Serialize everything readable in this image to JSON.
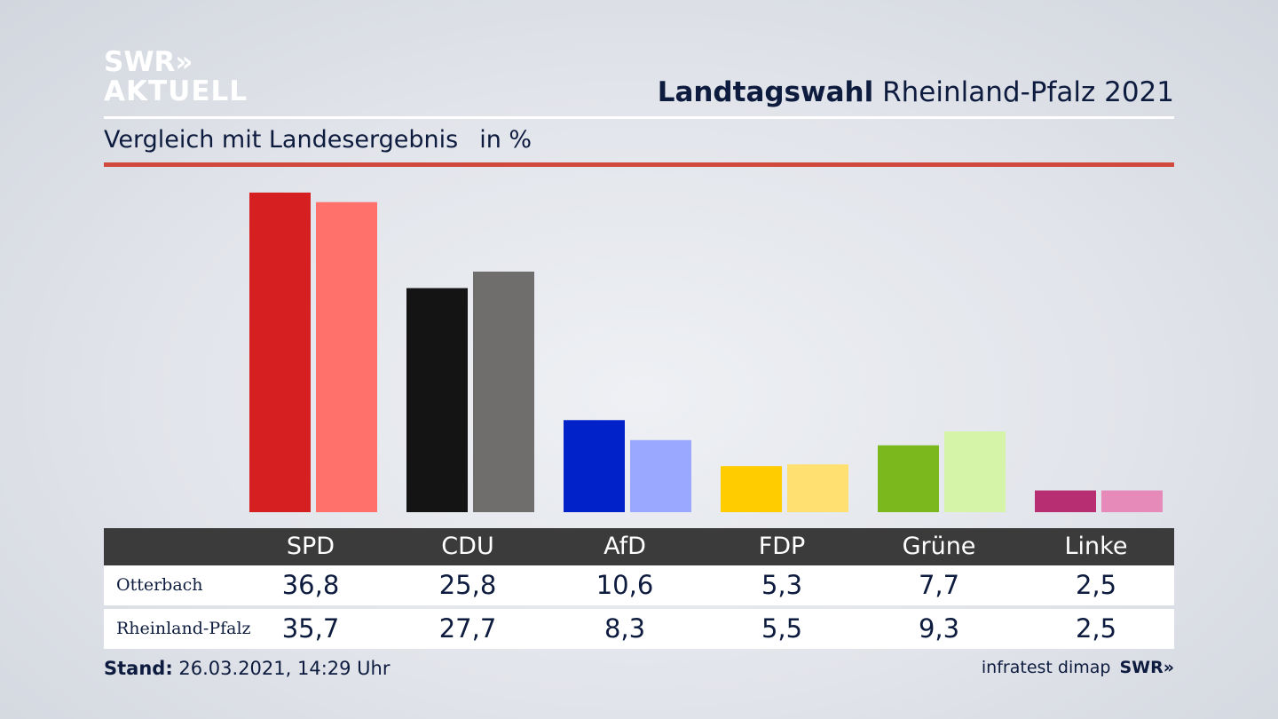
{
  "logo": {
    "line1": "SWR»",
    "line2": "AKTUELL"
  },
  "header": {
    "title_bold": "Landtagswahl",
    "title_rest": " Rheinland-Pfalz 2021",
    "subtitle": "Vergleich mit Landesergebnis",
    "unit": "in %"
  },
  "colors": {
    "accent_red": "#d1483c",
    "table_header": "#3b3b3b"
  },
  "chart_data": {
    "type": "bar",
    "categories": [
      "SPD",
      "CDU",
      "AfD",
      "FDP",
      "Grüne",
      "Linke"
    ],
    "series": [
      {
        "name": "Otterbach",
        "values": [
          36.8,
          25.8,
          10.6,
          5.3,
          7.7,
          2.5
        ],
        "colors": [
          "#d51f20",
          "#141414",
          "#0022c8",
          "#ffcc00",
          "#7ab81e",
          "#b82e72"
        ]
      },
      {
        "name": "Rheinland-Pfalz",
        "values": [
          35.7,
          27.7,
          8.3,
          5.5,
          9.3,
          2.5
        ],
        "colors": [
          "#ff716a",
          "#6f6e6c",
          "#9aa8ff",
          "#ffe070",
          "#d5f4a8",
          "#e58ab9"
        ]
      }
    ],
    "value_labels": [
      [
        "36,8",
        "25,8",
        "10,6",
        "5,3",
        "7,7",
        "2,5"
      ],
      [
        "35,7",
        "27,7",
        "8,3",
        "5,5",
        "9,3",
        "2,5"
      ]
    ],
    "ylim": [
      0,
      37
    ]
  },
  "footer": {
    "stand_label": "Stand:",
    "stand_value": " 26.03.2021, 14:29 Uhr",
    "source": "infratest dimap",
    "source_logo": "SWR»"
  }
}
